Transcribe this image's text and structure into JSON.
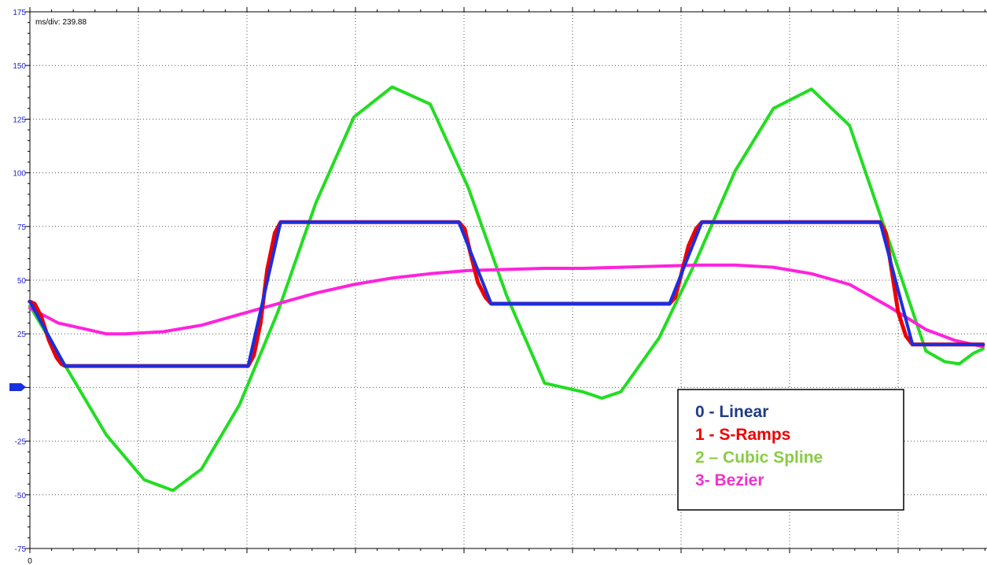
{
  "chart_data": {
    "type": "line",
    "readout": "ms/div: 239.88",
    "x_origin_label": "0",
    "ylim": [
      -75,
      175
    ],
    "y_ticks": [
      175,
      150,
      125,
      100,
      75,
      50,
      25,
      0,
      -25,
      -50,
      -75
    ],
    "y_tick_labels": [
      "175",
      "150",
      "125",
      "100",
      "75",
      "50",
      "25",
      "",
      "-25",
      "-50",
      "-75"
    ],
    "xlim": [
      0,
      1000
    ],
    "grid": true,
    "legend_position": "bottom-right",
    "series": [
      {
        "name": "0 - Linear",
        "color": "#1a2fe0",
        "legend_color": "#1f3c88",
        "x": [
          0,
          37,
          229,
          263,
          450,
          484,
          671,
          705,
          892,
          926,
          1000
        ],
        "y": [
          40,
          10,
          10,
          77,
          77,
          39,
          39,
          77,
          77,
          20,
          20
        ]
      },
      {
        "name": "1 - S-Ramps",
        "color": "#ee0000",
        "legend_color": "#ee0000",
        "x": [
          0,
          5,
          12,
          20,
          28,
          33,
          37,
          229,
          235,
          242,
          249,
          257,
          263,
          450,
          456,
          462,
          470,
          478,
          484,
          671,
          677,
          683,
          691,
          699,
          705,
          892,
          898,
          904,
          911,
          919,
          926,
          1000
        ],
        "y": [
          40,
          39,
          33,
          22,
          14,
          11,
          10,
          10,
          15,
          30,
          55,
          72,
          77,
          77,
          74,
          63,
          49,
          42,
          39,
          39,
          42,
          52,
          66,
          74,
          77,
          77,
          72,
          55,
          35,
          24,
          20,
          20
        ]
      },
      {
        "name": "2 – Cubic Spline",
        "color": "#22dd22",
        "legend_color": "#88cc44",
        "x": [
          0,
          40,
          80,
          120,
          150,
          180,
          220,
          260,
          300,
          340,
          380,
          420,
          460,
          500,
          540,
          580,
          600,
          620,
          660,
          700,
          740,
          780,
          820,
          860,
          900,
          940,
          960,
          975,
          990,
          1000
        ],
        "y": [
          38,
          8,
          -22,
          -43,
          -48,
          -38,
          -8,
          35,
          86,
          126,
          140,
          132,
          93,
          43,
          2,
          -2,
          -5,
          -2,
          23,
          60,
          101,
          130,
          139,
          122,
          70,
          17,
          12,
          11,
          16,
          18
        ]
      },
      {
        "name": "3- Bezier",
        "color": "#ff22dd",
        "legend_color": "#ee33cc",
        "x": [
          0,
          30,
          60,
          80,
          100,
          140,
          180,
          220,
          260,
          300,
          340,
          380,
          420,
          460,
          500,
          540,
          580,
          620,
          660,
          700,
          740,
          780,
          820,
          860,
          900,
          940,
          970,
          1000
        ],
        "y": [
          37,
          30,
          27,
          25,
          25,
          26,
          29,
          34,
          39,
          44,
          48,
          51,
          53,
          54.5,
          55,
          55.5,
          55.5,
          56,
          56.5,
          57,
          57,
          56,
          53,
          48,
          38,
          27,
          22,
          19
        ]
      }
    ]
  }
}
